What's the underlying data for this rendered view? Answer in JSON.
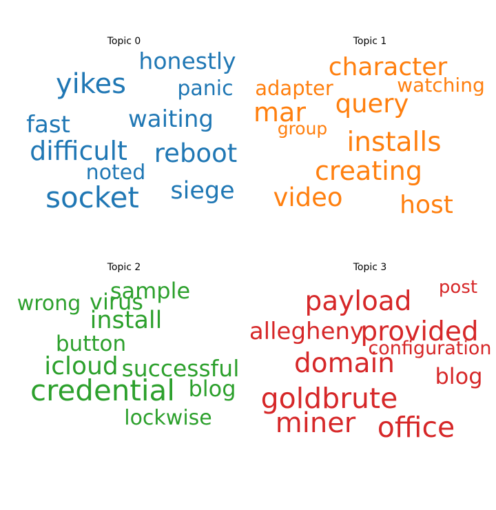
{
  "chart_data": [
    {
      "type": "wordcloud",
      "title": "Topic 0",
      "color": "#1f77b4",
      "words": [
        "honestly",
        "yikes",
        "panic",
        "waiting",
        "fast",
        "difficult",
        "reboot",
        "noted",
        "socket",
        "siege"
      ],
      "weights": [
        0.78,
        0.95,
        0.72,
        0.82,
        0.8,
        0.9,
        0.87,
        0.72,
        1.0,
        0.84
      ]
    },
    {
      "type": "wordcloud",
      "title": "Topic 1",
      "color": "#ff7f0e",
      "words": [
        "character",
        "adapter",
        "watching",
        "query",
        "mar",
        "group",
        "installs",
        "creating",
        "video",
        "host"
      ],
      "weights": [
        0.85,
        0.68,
        0.66,
        0.88,
        0.9,
        0.6,
        0.92,
        0.9,
        0.88,
        0.86
      ]
    },
    {
      "type": "wordcloud",
      "title": "Topic 2",
      "color": "#2ca02c",
      "words": [
        "sample",
        "wrong",
        "virus",
        "install",
        "button",
        "icloud",
        "successful",
        "credential",
        "blog",
        "lockwise"
      ],
      "weights": [
        0.76,
        0.72,
        0.75,
        0.84,
        0.74,
        0.86,
        0.78,
        1.0,
        0.76,
        0.72
      ]
    },
    {
      "type": "wordcloud",
      "title": "Topic 3",
      "color": "#d62728",
      "words": [
        "post",
        "payload",
        "allegheny",
        "provided",
        "configuration",
        "domain",
        "blog",
        "goldbrute",
        "miner",
        "office"
      ],
      "weights": [
        0.62,
        0.93,
        0.8,
        0.92,
        0.64,
        0.93,
        0.76,
        0.98,
        0.96,
        0.98
      ]
    }
  ]
}
